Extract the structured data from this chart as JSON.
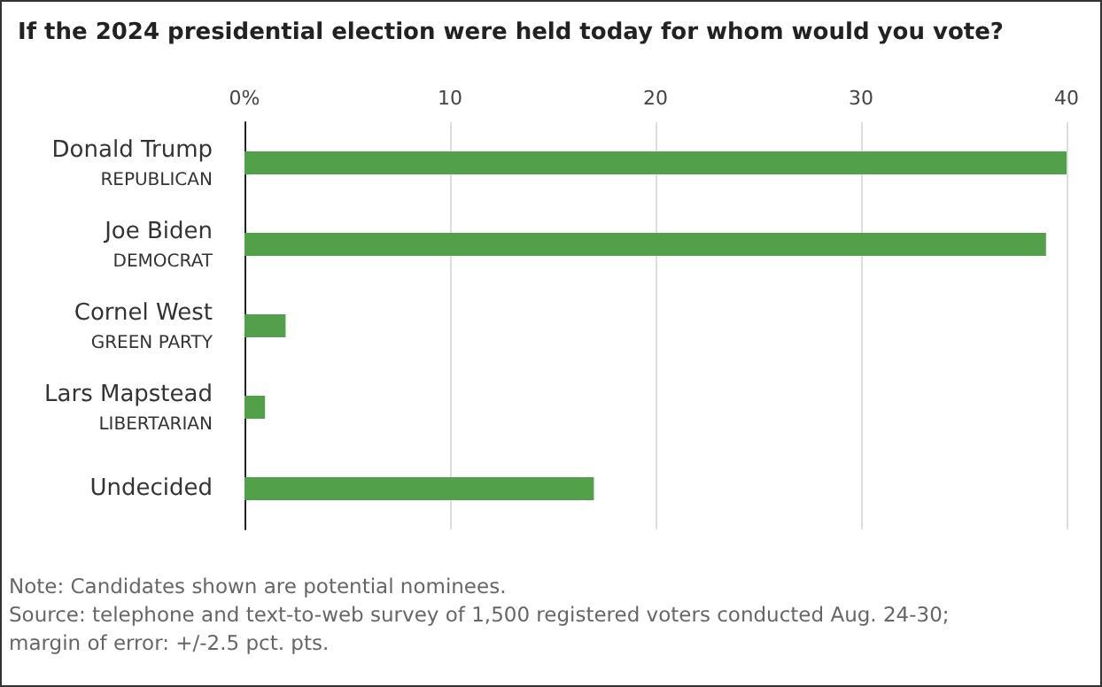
{
  "chart_data": {
    "type": "bar",
    "orientation": "horizontal",
    "title": "If the 2024 presidential election were held today for whom would you vote?",
    "categories": [
      "Donald Trump\nREPUBLICAN",
      "Joe Biden\nDEMOCRAT",
      "Cornel West\nGREEN PARTY",
      "Lars Mapstead\nLIBERTARIAN",
      "Undecided"
    ],
    "values": [
      40,
      39,
      2,
      1,
      17
    ],
    "color": "#53a04b",
    "xlim": [
      0,
      40
    ],
    "xticks": [
      {
        "value": 0,
        "label": "0%"
      },
      10,
      20,
      30,
      40
    ],
    "grid": "x",
    "annotations": [
      "Note: Candidates shown are potential nominees.",
      "Source: telephone and text-to-web survey of 1,500 registered voters conducted Aug. 24-30; margin of error: +/-2.5 pct. pts."
    ]
  }
}
